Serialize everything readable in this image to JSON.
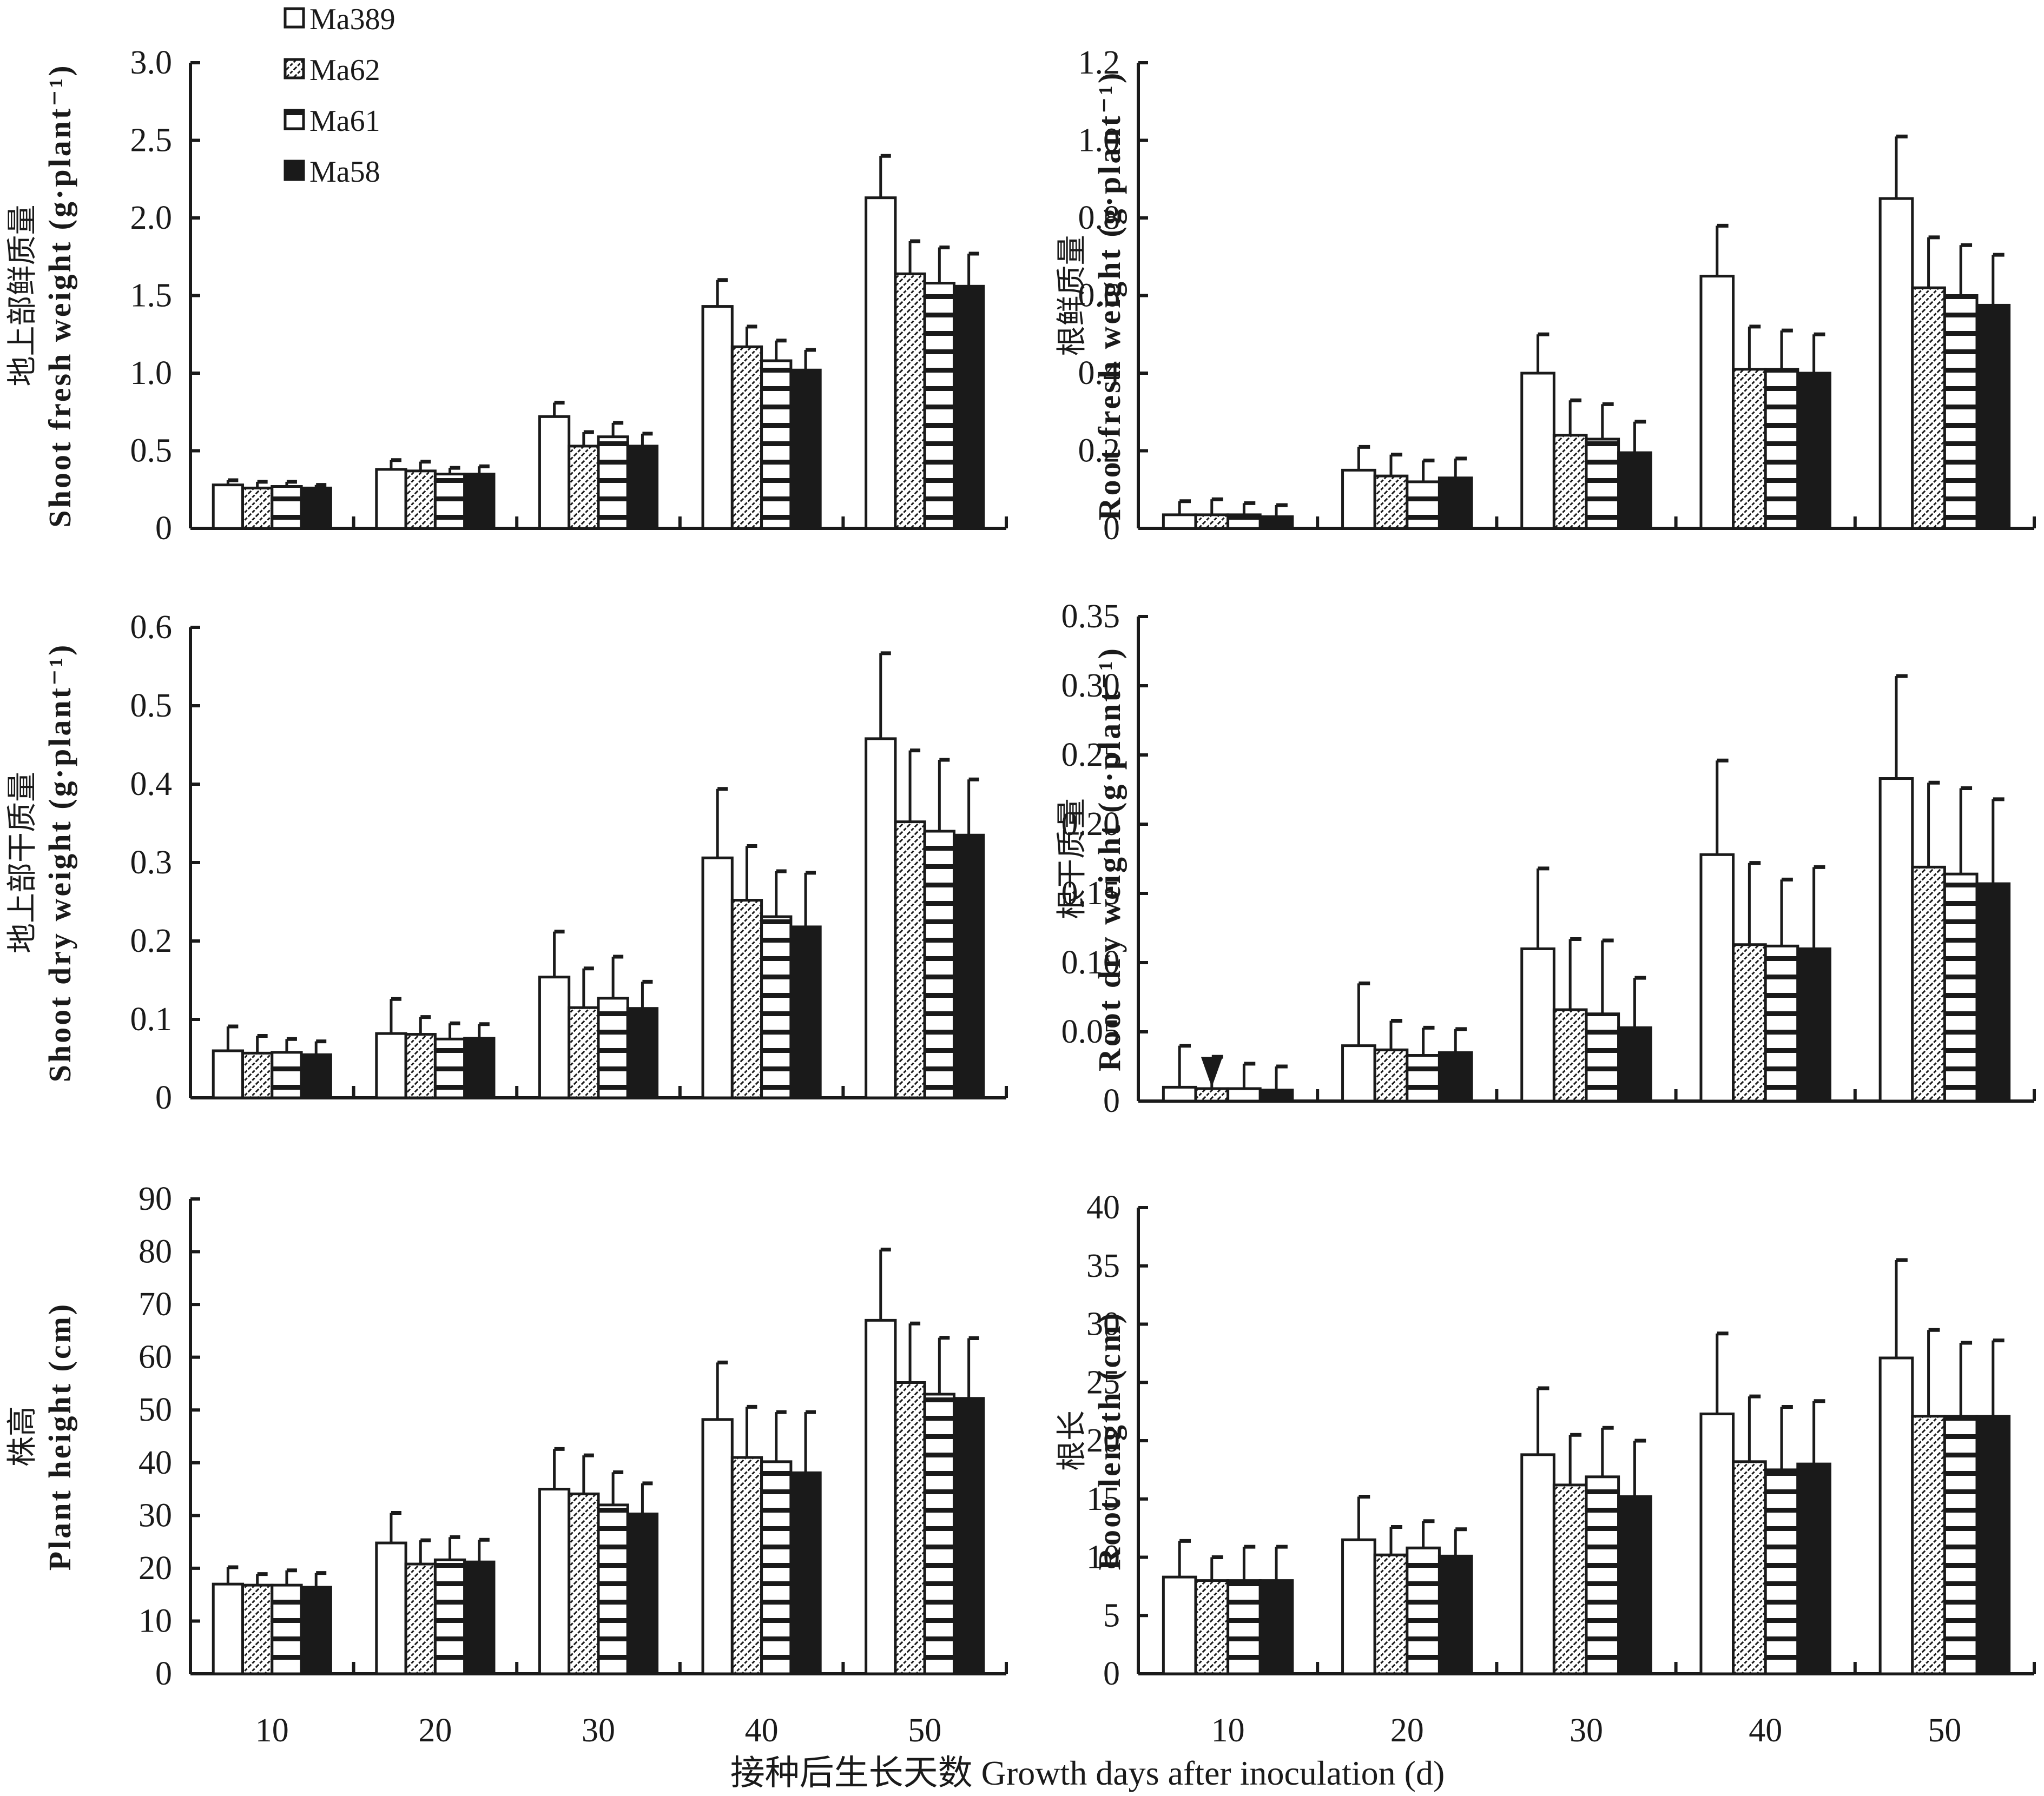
{
  "chart_data": [
    {
      "id": "shoot-fresh",
      "type": "bar",
      "ylabel_cn": "地上部鲜质量",
      "ylabel_en": "Shoot fresh weight (g·plant⁻¹)",
      "categories": [
        "10",
        "20",
        "30",
        "40",
        "50"
      ],
      "ylim": [
        0,
        3.0
      ],
      "yticks": [
        "0",
        "0.5",
        "1.0",
        "1.5",
        "2.0",
        "2.5",
        "3.0"
      ],
      "ytick_values": [
        0,
        0.5,
        1.0,
        1.5,
        2.0,
        2.5,
        3.0
      ],
      "series": [
        {
          "name": "Ma389",
          "values": [
            0.28,
            0.38,
            0.72,
            1.43,
            2.13
          ],
          "err_top": [
            0.31,
            0.44,
            0.81,
            1.6,
            2.4
          ]
        },
        {
          "name": "Ma62",
          "values": [
            0.26,
            0.37,
            0.53,
            1.17,
            1.64
          ],
          "err_top": [
            0.3,
            0.43,
            0.62,
            1.3,
            1.85
          ]
        },
        {
          "name": "Ma61",
          "values": [
            0.27,
            0.35,
            0.59,
            1.08,
            1.58
          ],
          "err_top": [
            0.3,
            0.39,
            0.68,
            1.21,
            1.81
          ]
        },
        {
          "name": "Ma58",
          "values": [
            0.26,
            0.35,
            0.53,
            1.02,
            1.56
          ],
          "err_top": [
            0.28,
            0.4,
            0.61,
            1.15,
            1.77
          ]
        }
      ]
    },
    {
      "id": "root-fresh",
      "type": "bar",
      "ylabel_cn": "根鲜质量",
      "ylabel_en": "Root fresh weight (g·plant⁻¹)",
      "categories": [
        "10",
        "20",
        "30",
        "40",
        "50"
      ],
      "ylim": [
        0,
        1.2
      ],
      "yticks": [
        "0",
        "0.2",
        "0.4",
        "0.6",
        "0.8",
        "1.0",
        "1.2"
      ],
      "ytick_values": [
        0,
        0.2,
        0.4,
        0.6,
        0.8,
        1.0,
        1.2
      ],
      "series": [
        {
          "name": "Ma389",
          "values": [
            0.035,
            0.15,
            0.4,
            0.65,
            0.85
          ],
          "err_top": [
            0.07,
            0.21,
            0.5,
            0.78,
            1.01
          ]
        },
        {
          "name": "Ma62",
          "values": [
            0.035,
            0.135,
            0.24,
            0.41,
            0.62
          ],
          "err_top": [
            0.075,
            0.19,
            0.33,
            0.52,
            0.75
          ]
        },
        {
          "name": "Ma61",
          "values": [
            0.035,
            0.12,
            0.23,
            0.41,
            0.6
          ],
          "err_top": [
            0.065,
            0.175,
            0.32,
            0.51,
            0.73
          ]
        },
        {
          "name": "Ma58",
          "values": [
            0.03,
            0.13,
            0.195,
            0.4,
            0.575
          ],
          "err_top": [
            0.06,
            0.18,
            0.275,
            0.5,
            0.705
          ]
        }
      ]
    },
    {
      "id": "shoot-dry",
      "type": "bar",
      "ylabel_cn": "地上部干质量",
      "ylabel_en": "Shoot dry weight (g·plant⁻¹)",
      "categories": [
        "10",
        "20",
        "30",
        "40",
        "50"
      ],
      "ylim": [
        0,
        0.6
      ],
      "yticks": [
        "0",
        "0.1",
        "0.2",
        "0.3",
        "0.4",
        "0.5",
        "0.6"
      ],
      "ytick_values": [
        0,
        0.1,
        0.2,
        0.3,
        0.4,
        0.5,
        0.6
      ],
      "series": [
        {
          "name": "Ma389",
          "values": [
            0.06,
            0.082,
            0.154,
            0.306,
            0.458
          ],
          "err_top": [
            0.091,
            0.126,
            0.212,
            0.394,
            0.567
          ]
        },
        {
          "name": "Ma62",
          "values": [
            0.057,
            0.081,
            0.115,
            0.252,
            0.352
          ],
          "err_top": [
            0.079,
            0.103,
            0.165,
            0.321,
            0.443
          ]
        },
        {
          "name": "Ma61",
          "values": [
            0.058,
            0.075,
            0.127,
            0.231,
            0.34
          ],
          "err_top": [
            0.075,
            0.095,
            0.18,
            0.289,
            0.431
          ]
        },
        {
          "name": "Ma58",
          "values": [
            0.055,
            0.076,
            0.114,
            0.218,
            0.335
          ],
          "err_top": [
            0.072,
            0.094,
            0.148,
            0.287,
            0.406
          ]
        }
      ]
    },
    {
      "id": "root-dry",
      "type": "bar",
      "ylabel_cn": "根干质量",
      "ylabel_en": "Root dry weight (g·plant⁻¹)",
      "categories": [
        "10",
        "20",
        "30",
        "40",
        "50"
      ],
      "ylim": [
        0,
        0.35
      ],
      "yticks": [
        "0",
        "0.05",
        "0.10",
        "0.15",
        "0.20",
        "0.25",
        "0.30",
        "0.35"
      ],
      "ytick_values": [
        0,
        0.05,
        0.1,
        0.15,
        0.2,
        0.25,
        0.3,
        0.35
      ],
      "annotation": "▼",
      "series": [
        {
          "name": "Ma389",
          "values": [
            0.01,
            0.04,
            0.11,
            0.178,
            0.233
          ],
          "err_top": [
            0.04,
            0.085,
            0.168,
            0.246,
            0.307
          ]
        },
        {
          "name": "Ma62",
          "values": [
            0.009,
            0.037,
            0.066,
            0.113,
            0.169
          ],
          "err_top": [
            0.032,
            0.058,
            0.117,
            0.172,
            0.23
          ]
        },
        {
          "name": "Ma61",
          "values": [
            0.009,
            0.033,
            0.063,
            0.112,
            0.164
          ],
          "err_top": [
            0.027,
            0.053,
            0.116,
            0.16,
            0.226
          ]
        },
        {
          "name": "Ma58",
          "values": [
            0.008,
            0.035,
            0.053,
            0.11,
            0.157
          ],
          "err_top": [
            0.025,
            0.052,
            0.089,
            0.169,
            0.218
          ]
        }
      ]
    },
    {
      "id": "plant-height",
      "type": "bar",
      "ylabel_cn": "株高",
      "ylabel_en": "Plant height (cm)",
      "categories": [
        "10",
        "20",
        "30",
        "40",
        "50"
      ],
      "ylim": [
        0,
        90
      ],
      "yticks": [
        "0",
        "10",
        "20",
        "30",
        "40",
        "50",
        "60",
        "70",
        "80",
        "90"
      ],
      "ytick_values": [
        0,
        10,
        20,
        30,
        40,
        50,
        60,
        70,
        80,
        90
      ],
      "series": [
        {
          "name": "Ma389",
          "values": [
            17.0,
            24.8,
            35.0,
            48.2,
            67.0
          ],
          "err_top": [
            20.2,
            30.5,
            42.6,
            59.0,
            80.4
          ]
        },
        {
          "name": "Ma62",
          "values": [
            16.8,
            20.8,
            34.1,
            41.0,
            55.2
          ],
          "err_top": [
            18.9,
            25.3,
            41.4,
            50.6,
            66.4
          ]
        },
        {
          "name": "Ma61",
          "values": [
            16.8,
            21.6,
            32.0,
            40.2,
            53.0
          ],
          "err_top": [
            19.6,
            25.9,
            38.2,
            49.6,
            63.7
          ]
        },
        {
          "name": "Ma58",
          "values": [
            16.4,
            21.2,
            30.3,
            38.1,
            52.2
          ],
          "err_top": [
            19.1,
            25.4,
            36.1,
            49.6,
            63.6
          ]
        }
      ]
    },
    {
      "id": "root-length",
      "type": "bar",
      "ylabel_cn": "根长",
      "ylabel_en": "Root length (cm)",
      "categories": [
        "10",
        "20",
        "30",
        "40",
        "50"
      ],
      "ylim": [
        0,
        40
      ],
      "yticks": [
        "0",
        "5",
        "10",
        "15",
        "20",
        "25",
        "30",
        "35",
        "40"
      ],
      "ytick_values": [
        0,
        5,
        10,
        15,
        20,
        25,
        30,
        35,
        40
      ],
      "series": [
        {
          "name": "Ma389",
          "values": [
            8.3,
            11.5,
            18.8,
            22.3,
            27.1
          ],
          "err_top": [
            11.4,
            15.2,
            24.5,
            29.2,
            35.5
          ]
        },
        {
          "name": "Ma62",
          "values": [
            8.0,
            10.2,
            16.2,
            18.2,
            22.1
          ],
          "err_top": [
            10.0,
            12.6,
            20.5,
            23.8,
            29.5
          ]
        },
        {
          "name": "Ma61",
          "values": [
            8.0,
            10.8,
            16.9,
            17.5,
            22.1
          ],
          "err_top": [
            10.9,
            13.1,
            21.1,
            22.9,
            28.4
          ]
        },
        {
          "name": "Ma58",
          "values": [
            8.0,
            10.1,
            15.2,
            18.0,
            22.1
          ],
          "err_top": [
            10.9,
            12.4,
            20.0,
            23.4,
            28.6
          ]
        }
      ]
    }
  ],
  "legend": {
    "items": [
      {
        "name": "Ma389",
        "pattern": "empty"
      },
      {
        "name": "Ma62",
        "pattern": "diagonal"
      },
      {
        "name": "Ma61",
        "pattern": "horizontal"
      },
      {
        "name": "Ma58",
        "pattern": "solid"
      }
    ],
    "placement": "top-left (inside top-left panel)"
  },
  "xlabel": "接种后生长天数 Growth days after inoculation (d)",
  "colors": {
    "ink": "#1a1a1a",
    "background": "#ffffff"
  }
}
